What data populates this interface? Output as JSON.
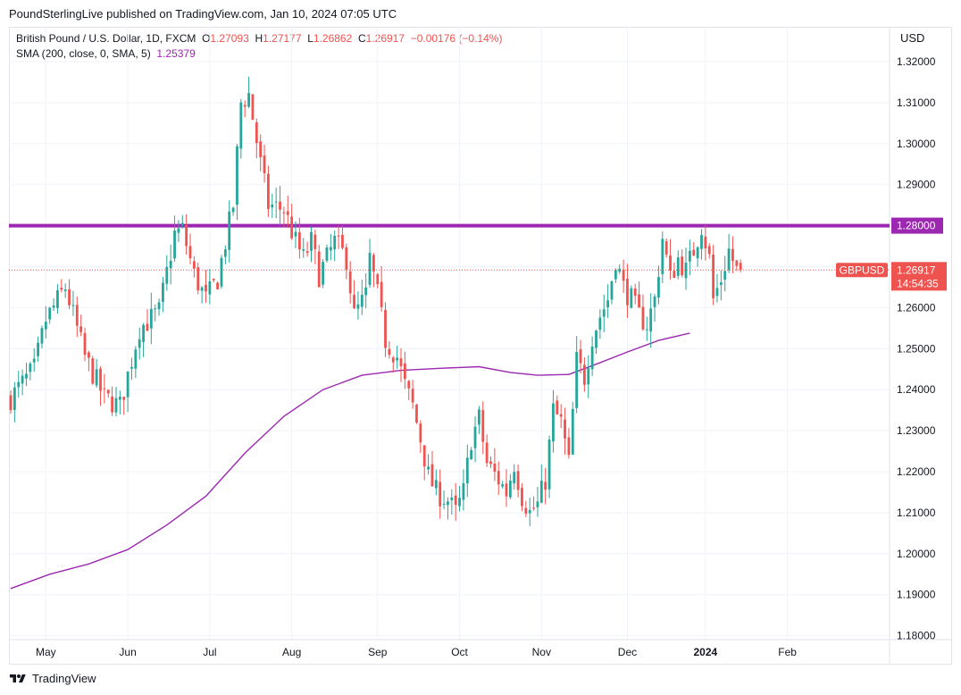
{
  "header": {
    "published": "PoundSterlingLive published on TradingView.com, Jan 10, 2024 07:05 UTC"
  },
  "legend": {
    "symbol": "British Pound / U.S. Dollar, 1D, FXCM",
    "o_label": "O",
    "o_value": "1.27093",
    "h_label": "H",
    "h_value": "1.27177",
    "l_label": "L",
    "l_value": "1.26862",
    "c_label": "C",
    "c_value": "1.26917",
    "change": "−0.00176 (−0.14%)",
    "sma_label": "SMA (200, close, 0, SMA, 5)",
    "sma_value": "1.25379"
  },
  "currency": "USD",
  "footer": {
    "brand": "TradingView"
  },
  "colors": {
    "up": "#26a69a",
    "down": "#ef5350",
    "sma": "#9c27b0",
    "level": "#9c27b0",
    "grid": "#f0f3fa"
  },
  "chart_data": {
    "type": "candlestick",
    "title": "British Pound / U.S. Dollar, 1D, FXCM",
    "ylim": [
      1.175,
      1.326
    ],
    "y_ticks": [
      "1.32000",
      "1.31000",
      "1.30000",
      "1.29000",
      "1.28000",
      "1.27000",
      "1.26000",
      "1.25000",
      "1.24000",
      "1.23000",
      "1.22000",
      "1.21000",
      "1.20000",
      "1.19000",
      "1.18000"
    ],
    "x_ticks": [
      {
        "label": "May",
        "index": 9
      },
      {
        "label": "Jun",
        "index": 30
      },
      {
        "label": "Jul",
        "index": 51
      },
      {
        "label": "Aug",
        "index": 72
      },
      {
        "label": "Sep",
        "index": 94
      },
      {
        "label": "Oct",
        "index": 115
      },
      {
        "label": "Nov",
        "index": 136
      },
      {
        "label": "Dec",
        "index": 158
      },
      {
        "label": "2024",
        "index": 178,
        "bold": true
      },
      {
        "label": "Feb",
        "index": 199
      }
    ],
    "level_line": {
      "value": 1.28,
      "label": "1.28000"
    },
    "price_line": {
      "value": 1.26917,
      "symbol": "GBPUSD",
      "label": "1.26917",
      "countdown": "14:54:35"
    },
    "sma_series": [
      {
        "i": 0,
        "v": 1.1915
      },
      {
        "i": 10,
        "v": 1.195
      },
      {
        "i": 20,
        "v": 1.1975
      },
      {
        "i": 30,
        "v": 1.201
      },
      {
        "i": 40,
        "v": 1.207
      },
      {
        "i": 50,
        "v": 1.214
      },
      {
        "i": 60,
        "v": 1.2245
      },
      {
        "i": 70,
        "v": 1.2335
      },
      {
        "i": 80,
        "v": 1.24
      },
      {
        "i": 90,
        "v": 1.2435
      },
      {
        "i": 100,
        "v": 1.2447
      },
      {
        "i": 110,
        "v": 1.2452
      },
      {
        "i": 120,
        "v": 1.2456
      },
      {
        "i": 128,
        "v": 1.2442
      },
      {
        "i": 135,
        "v": 1.2435
      },
      {
        "i": 143,
        "v": 1.2437
      },
      {
        "i": 150,
        "v": 1.2462
      },
      {
        "i": 158,
        "v": 1.2492
      },
      {
        "i": 166,
        "v": 1.252
      },
      {
        "i": 174,
        "v": 1.2538
      }
    ],
    "anchors": [
      {
        "i": 0,
        "v": 1.238
      },
      {
        "i": 6,
        "v": 1.245
      },
      {
        "i": 9,
        "v": 1.257
      },
      {
        "i": 14,
        "v": 1.265
      },
      {
        "i": 19,
        "v": 1.248
      },
      {
        "i": 24,
        "v": 1.238
      },
      {
        "i": 28,
        "v": 1.236
      },
      {
        "i": 33,
        "v": 1.255
      },
      {
        "i": 38,
        "v": 1.259
      },
      {
        "i": 42,
        "v": 1.278
      },
      {
        "i": 44,
        "v": 1.279
      },
      {
        "i": 47,
        "v": 1.268
      },
      {
        "i": 50,
        "v": 1.262
      },
      {
        "i": 53,
        "v": 1.267
      },
      {
        "i": 57,
        "v": 1.285
      },
      {
        "i": 59,
        "v": 1.31
      },
      {
        "i": 61,
        "v": 1.312
      },
      {
        "i": 64,
        "v": 1.295
      },
      {
        "i": 66,
        "v": 1.285
      },
      {
        "i": 70,
        "v": 1.284
      },
      {
        "i": 73,
        "v": 1.276
      },
      {
        "i": 75,
        "v": 1.272
      },
      {
        "i": 77,
        "v": 1.276
      },
      {
        "i": 79,
        "v": 1.268
      },
      {
        "i": 83,
        "v": 1.276
      },
      {
        "i": 86,
        "v": 1.272
      },
      {
        "i": 88,
        "v": 1.258
      },
      {
        "i": 91,
        "v": 1.263
      },
      {
        "i": 92,
        "v": 1.272
      },
      {
        "i": 94,
        "v": 1.263
      },
      {
        "i": 96,
        "v": 1.252
      },
      {
        "i": 99,
        "v": 1.248
      },
      {
        "i": 101,
        "v": 1.241
      },
      {
        "i": 103,
        "v": 1.236
      },
      {
        "i": 105,
        "v": 1.228
      },
      {
        "i": 107,
        "v": 1.219
      },
      {
        "i": 109,
        "v": 1.215
      },
      {
        "i": 112,
        "v": 1.213
      },
      {
        "i": 114,
        "v": 1.21
      },
      {
        "i": 116,
        "v": 1.215
      },
      {
        "i": 118,
        "v": 1.228
      },
      {
        "i": 120,
        "v": 1.233
      },
      {
        "i": 122,
        "v": 1.222
      },
      {
        "i": 125,
        "v": 1.218
      },
      {
        "i": 127,
        "v": 1.215
      },
      {
        "i": 129,
        "v": 1.222
      },
      {
        "i": 131,
        "v": 1.214
      },
      {
        "i": 133,
        "v": 1.21
      },
      {
        "i": 135,
        "v": 1.212
      },
      {
        "i": 137,
        "v": 1.218
      },
      {
        "i": 139,
        "v": 1.235
      },
      {
        "i": 141,
        "v": 1.232
      },
      {
        "i": 143,
        "v": 1.222
      },
      {
        "i": 145,
        "v": 1.247
      },
      {
        "i": 147,
        "v": 1.243
      },
      {
        "i": 149,
        "v": 1.253
      },
      {
        "i": 151,
        "v": 1.258
      },
      {
        "i": 153,
        "v": 1.262
      },
      {
        "i": 155,
        "v": 1.272
      },
      {
        "i": 157,
        "v": 1.265
      },
      {
        "i": 159,
        "v": 1.262
      },
      {
        "i": 161,
        "v": 1.258
      },
      {
        "i": 163,
        "v": 1.256
      },
      {
        "i": 165,
        "v": 1.262
      },
      {
        "i": 167,
        "v": 1.277
      },
      {
        "i": 169,
        "v": 1.267
      },
      {
        "i": 171,
        "v": 1.272
      },
      {
        "i": 173,
        "v": 1.269
      },
      {
        "i": 175,
        "v": 1.274
      },
      {
        "i": 177,
        "v": 1.28
      },
      {
        "i": 179,
        "v": 1.272
      },
      {
        "i": 180,
        "v": 1.262
      },
      {
        "i": 182,
        "v": 1.267
      },
      {
        "i": 184,
        "v": 1.274
      },
      {
        "i": 186,
        "v": 1.269
      }
    ],
    "last_candle": {
      "o": 1.27093,
      "h": 1.27177,
      "l": 1.26862,
      "c": 1.26917
    }
  }
}
